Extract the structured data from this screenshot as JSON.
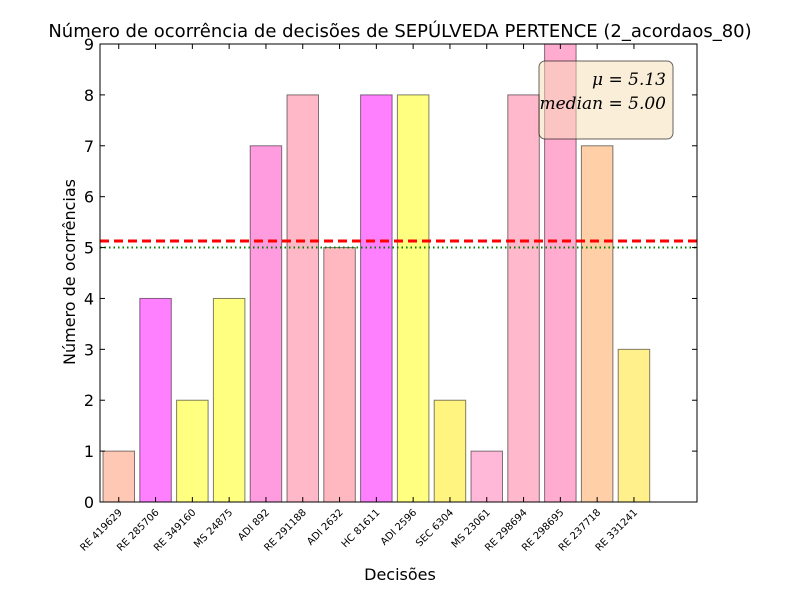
{
  "chart_data": {
    "type": "bar",
    "title": "Número de ocorrência de decisões de SEPÚLVEDA PERTENCE (2_acordaos_80)",
    "xlabel": "Decisões",
    "ylabel": "Número de ocorrências",
    "ylim": [
      0,
      9
    ],
    "yticks": [
      "0",
      "1",
      "2",
      "3",
      "4",
      "5",
      "6",
      "7",
      "8",
      "9"
    ],
    "categories": [
      "RE 419629",
      "RE 285706",
      "RE 349160",
      "MS 24875",
      "ADI 892",
      "RE 291188",
      "ADI 2632",
      "HC 81611",
      "ADI 2596",
      "SEC 6304",
      "MS 23061",
      "RE 298694",
      "RE 298695",
      "RE 237718",
      "RE 331241"
    ],
    "values": [
      1,
      4,
      2,
      4,
      7,
      8,
      5,
      8,
      8,
      2,
      1,
      8,
      9,
      7,
      3
    ],
    "bar_colors": [
      "#ffc8b4",
      "#ff80ff",
      "#ffff80",
      "#ffff80",
      "#ff9ce0",
      "#ffb8c8",
      "#ffb8c0",
      "#ff80ff",
      "#ffff80",
      "#fff480",
      "#ffb8d8",
      "#ffb8cc",
      "#ffacd0",
      "#ffd0a8",
      "#fff08c"
    ],
    "mean": 5.13,
    "median": 5.0,
    "mean_line": {
      "color": "#ff0000",
      "style": "dashed"
    },
    "median_line": {
      "color": "#008000",
      "style": "dotted"
    },
    "annotation": {
      "mean_text": "μ = 5.13",
      "median_text": "median = 5.00",
      "placement": "top-right",
      "box_color": "#f5deb3"
    },
    "grid": false
  }
}
